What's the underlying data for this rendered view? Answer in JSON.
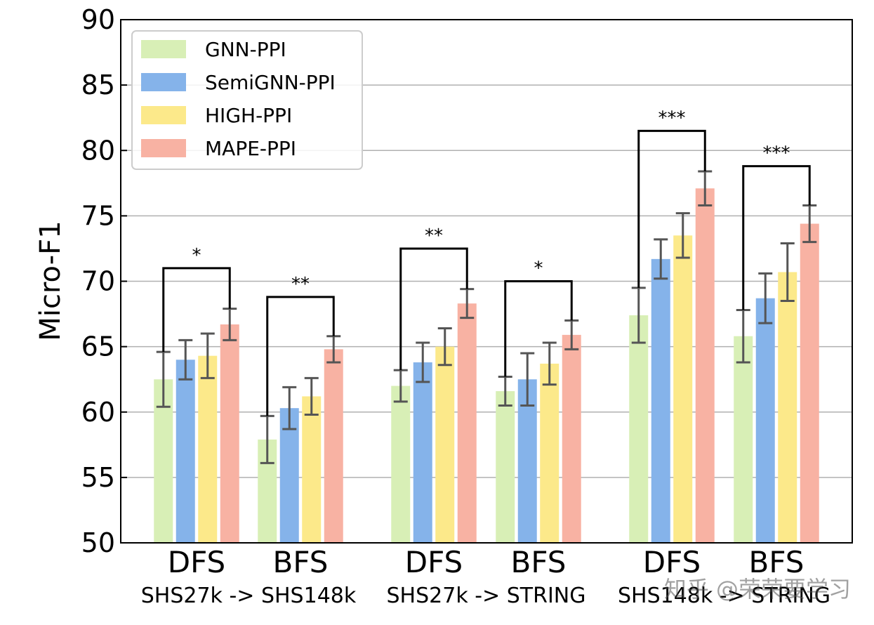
{
  "chart_data": {
    "type": "bar",
    "ylabel": "Micro-F1",
    "ylim": [
      50,
      90
    ],
    "yticks": [
      50,
      55,
      60,
      65,
      70,
      75,
      80,
      85,
      90
    ],
    "grid": true,
    "legend_position": "top-left",
    "groups": [
      {
        "label": "SHS27k -> SHS148k",
        "categories": [
          "DFS",
          "BFS"
        ]
      },
      {
        "label": "SHS27k -> STRING",
        "categories": [
          "DFS",
          "BFS"
        ]
      },
      {
        "label": "SHS148k -> STRING",
        "categories": [
          "DFS",
          "BFS"
        ]
      }
    ],
    "series": [
      {
        "name": "GNN-PPI",
        "color": "#d8efb6",
        "values": [
          62.5,
          57.9,
          62.0,
          61.6,
          67.4,
          65.8
        ],
        "errors": [
          2.1,
          1.8,
          1.2,
          1.1,
          2.1,
          2.0
        ]
      },
      {
        "name": "SemiGNN-PPI",
        "color": "#85b3ea",
        "values": [
          64.0,
          60.3,
          63.8,
          62.5,
          71.7,
          68.7
        ],
        "errors": [
          1.5,
          1.6,
          1.5,
          2.0,
          1.5,
          1.9
        ]
      },
      {
        "name": "HIGH-PPI",
        "color": "#fce98a",
        "values": [
          64.3,
          61.2,
          65.0,
          63.7,
          73.5,
          70.7
        ],
        "errors": [
          1.7,
          1.4,
          1.4,
          1.6,
          1.7,
          2.2
        ]
      },
      {
        "name": "MAPE-PPI",
        "color": "#f8b2a3",
        "values": [
          66.7,
          64.8,
          68.3,
          65.9,
          77.1,
          74.4
        ],
        "errors": [
          1.2,
          1.0,
          1.1,
          1.1,
          1.3,
          1.4
        ]
      }
    ],
    "significance": [
      {
        "bar_index": 0,
        "label": "*",
        "bracket_top": 71.0
      },
      {
        "bar_index": 1,
        "label": "**",
        "bracket_top": 68.8
      },
      {
        "bar_index": 2,
        "label": "**",
        "bracket_top": 72.5
      },
      {
        "bar_index": 3,
        "label": "*",
        "bracket_top": 70.0
      },
      {
        "bar_index": 4,
        "label": "***",
        "bracket_top": 81.5
      },
      {
        "bar_index": 5,
        "label": "***",
        "bracket_top": 78.8
      }
    ]
  },
  "watermark": "知乎 @荣荣要学习"
}
